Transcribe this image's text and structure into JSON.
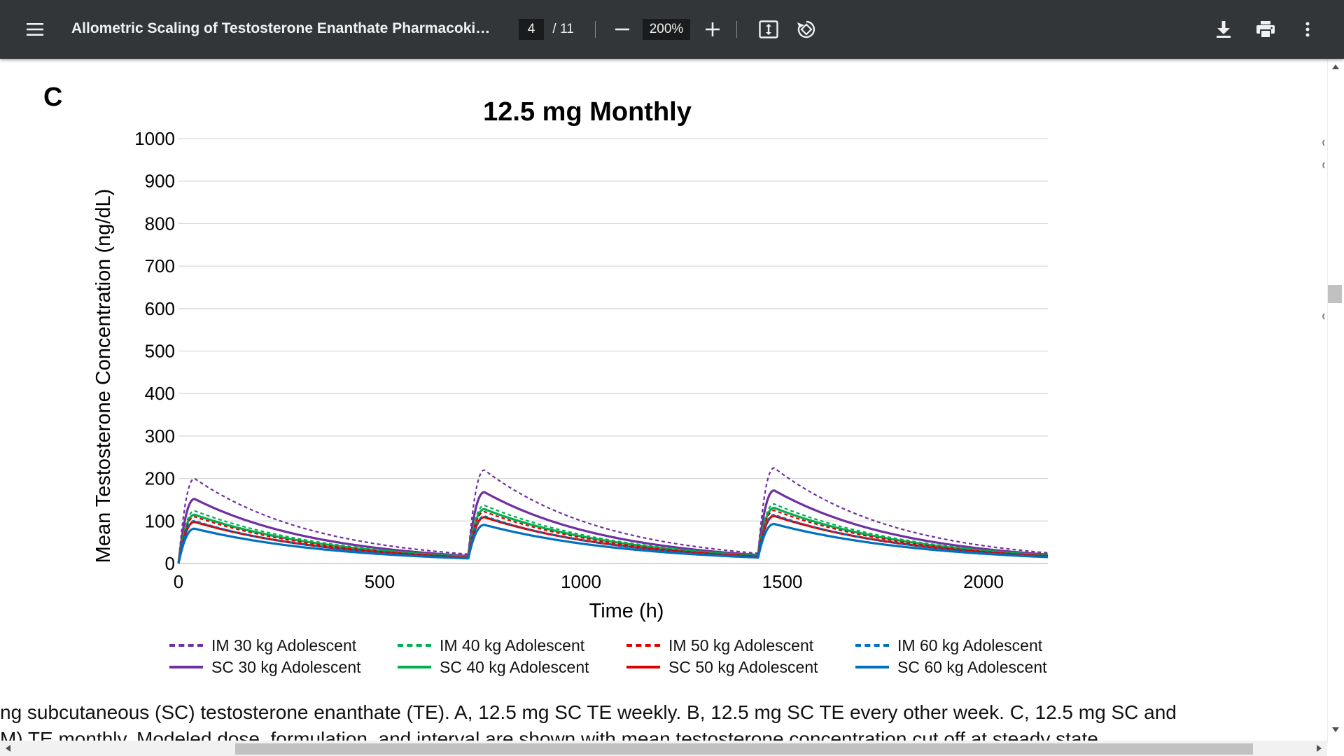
{
  "toolbar": {
    "title": "Allometric Scaling of Testosterone Enanthate Pharmacokinetic...",
    "page_current": "4",
    "page_separator": "/",
    "page_total": "11",
    "zoom": "200%",
    "icons": {
      "menu": "menu-icon",
      "zoom_out": "minus-icon",
      "zoom_in": "plus-icon",
      "fit": "fit-page-icon",
      "rotate": "rotate-icon",
      "download": "download-icon",
      "print": "print-icon",
      "more": "more-vert-icon"
    }
  },
  "panel_letter": "C",
  "chart_data": {
    "type": "line",
    "title": "12.5 mg Monthly",
    "xlabel": "Time (h)",
    "ylabel": "Mean Testosterone Concentration (ng/dL)",
    "xlim": [
      0,
      2160
    ],
    "ylim": [
      0,
      1000
    ],
    "xticks": [
      0,
      500,
      1000,
      1500,
      2000
    ],
    "yticks": [
      0,
      100,
      200,
      300,
      400,
      500,
      600,
      700,
      800,
      900,
      1000
    ],
    "grid": "horizontal",
    "dose_times": [
      0,
      720,
      1440
    ],
    "legend_position": "bottom",
    "series": [
      {
        "name": "IM 30 kg Adolescent",
        "route": "IM",
        "color": "#7030a0",
        "style": "dashed",
        "peaks": [
          200,
          220,
          225
        ],
        "troughs": [
          22,
          24,
          25
        ]
      },
      {
        "name": "SC 30 kg Adolescent",
        "route": "SC",
        "color": "#7030a0",
        "style": "solid",
        "peaks": [
          152,
          168,
          172
        ],
        "troughs": [
          18,
          20,
          21
        ]
      },
      {
        "name": "IM 40 kg Adolescent",
        "route": "IM",
        "color": "#00b050",
        "style": "dashed",
        "peaks": [
          124,
          137,
          140
        ],
        "troughs": [
          17,
          19,
          20
        ]
      },
      {
        "name": "SC 40 kg Adolescent",
        "route": "SC",
        "color": "#00b050",
        "style": "solid",
        "peaks": [
          115,
          128,
          131
        ],
        "troughs": [
          16,
          18,
          19
        ]
      },
      {
        "name": "IM 50 kg Adolescent",
        "route": "IM",
        "color": "#e00000",
        "style": "dashed",
        "peaks": [
          110,
          122,
          125
        ],
        "troughs": [
          15,
          17,
          18
        ]
      },
      {
        "name": "SC 50 kg Adolescent",
        "route": "SC",
        "color": "#e00000",
        "style": "solid",
        "peaks": [
          98,
          109,
          112
        ],
        "troughs": [
          14,
          16,
          17
        ]
      },
      {
        "name": "IM 60 kg Adolescent",
        "route": "IM",
        "color": "#0070c0",
        "style": "dashed",
        "peaks": [
          101,
          112,
          115
        ],
        "troughs": [
          13,
          15,
          16
        ]
      },
      {
        "name": "SC 60 kg Adolescent",
        "route": "SC",
        "color": "#0070c0",
        "style": "solid",
        "peaks": [
          82,
          91,
          93
        ],
        "troughs": [
          12,
          14,
          15
        ]
      }
    ]
  },
  "caption": {
    "line1": "ng subcutaneous (SC) testosterone enanthate (TE). A, 12.5 mg SC TE weekly. B, 12.5 mg SC TE every other week. C, 12.5 mg SC and",
    "line2": "M) TE monthly. Modeled dose, formulation, and interval are shown with mean testosterone concentration cut off at steady state."
  }
}
